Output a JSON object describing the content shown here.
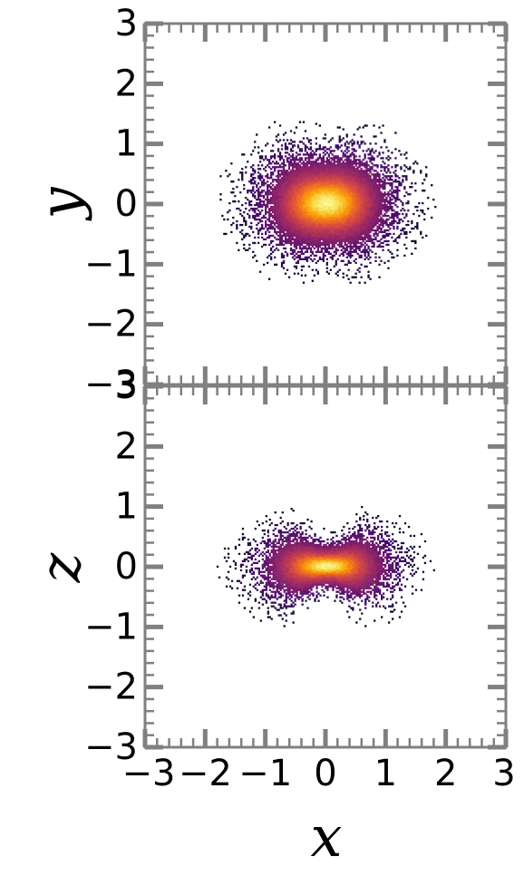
{
  "chart_data": [
    {
      "type": "heatmap",
      "panel": "top",
      "xlabel": "",
      "ylabel": "y",
      "xlim": [
        -3,
        3
      ],
      "ylim": [
        -3,
        3
      ],
      "x_ticks": [
        "−3",
        "−2",
        "−1",
        "0",
        "1",
        "2",
        "3"
      ],
      "y_ticks": [
        "−3",
        "−2",
        "−1",
        "0",
        "1",
        "2",
        "3"
      ],
      "grid": false,
      "colormap": "inferno",
      "distribution": {
        "shape": "ellipse with slight waist along x=0",
        "center": [
          0,
          0
        ],
        "core_sigma": [
          0.32,
          0.22
        ],
        "halo_sigma": [
          0.6,
          0.5
        ],
        "approx_extent": {
          "x": [
            -2.0,
            2.0
          ],
          "y": [
            -1.8,
            1.8
          ]
        },
        "waist_depth": 0.12
      }
    },
    {
      "type": "heatmap",
      "panel": "bottom",
      "xlabel": "x",
      "ylabel": "z",
      "xlim": [
        -3,
        3
      ],
      "ylim": [
        -3,
        3
      ],
      "x_ticks": [
        "−3",
        "−2",
        "−1",
        "0",
        "1",
        "2",
        "3"
      ],
      "y_ticks": [
        "−3",
        "−2",
        "−1",
        "0",
        "1",
        "2",
        "3"
      ],
      "grid": false,
      "colormap": "inferno",
      "distribution": {
        "shape": "bow-tie / hourglass pinched at x=0",
        "center": [
          0,
          0
        ],
        "core_sigma": [
          0.3,
          0.15
        ],
        "halo_sigma": [
          0.6,
          0.38
        ],
        "approx_extent": {
          "x": [
            -2.2,
            2.2
          ],
          "y": [
            -1.3,
            1.3
          ]
        },
        "waist_depth": 0.45
      }
    }
  ],
  "colors": {
    "frame": "#808080",
    "background": "#ffffff",
    "inferno_low": "#1b0c41",
    "inferno_mid": "#b63679",
    "inferno_high": "#fcffa4"
  }
}
